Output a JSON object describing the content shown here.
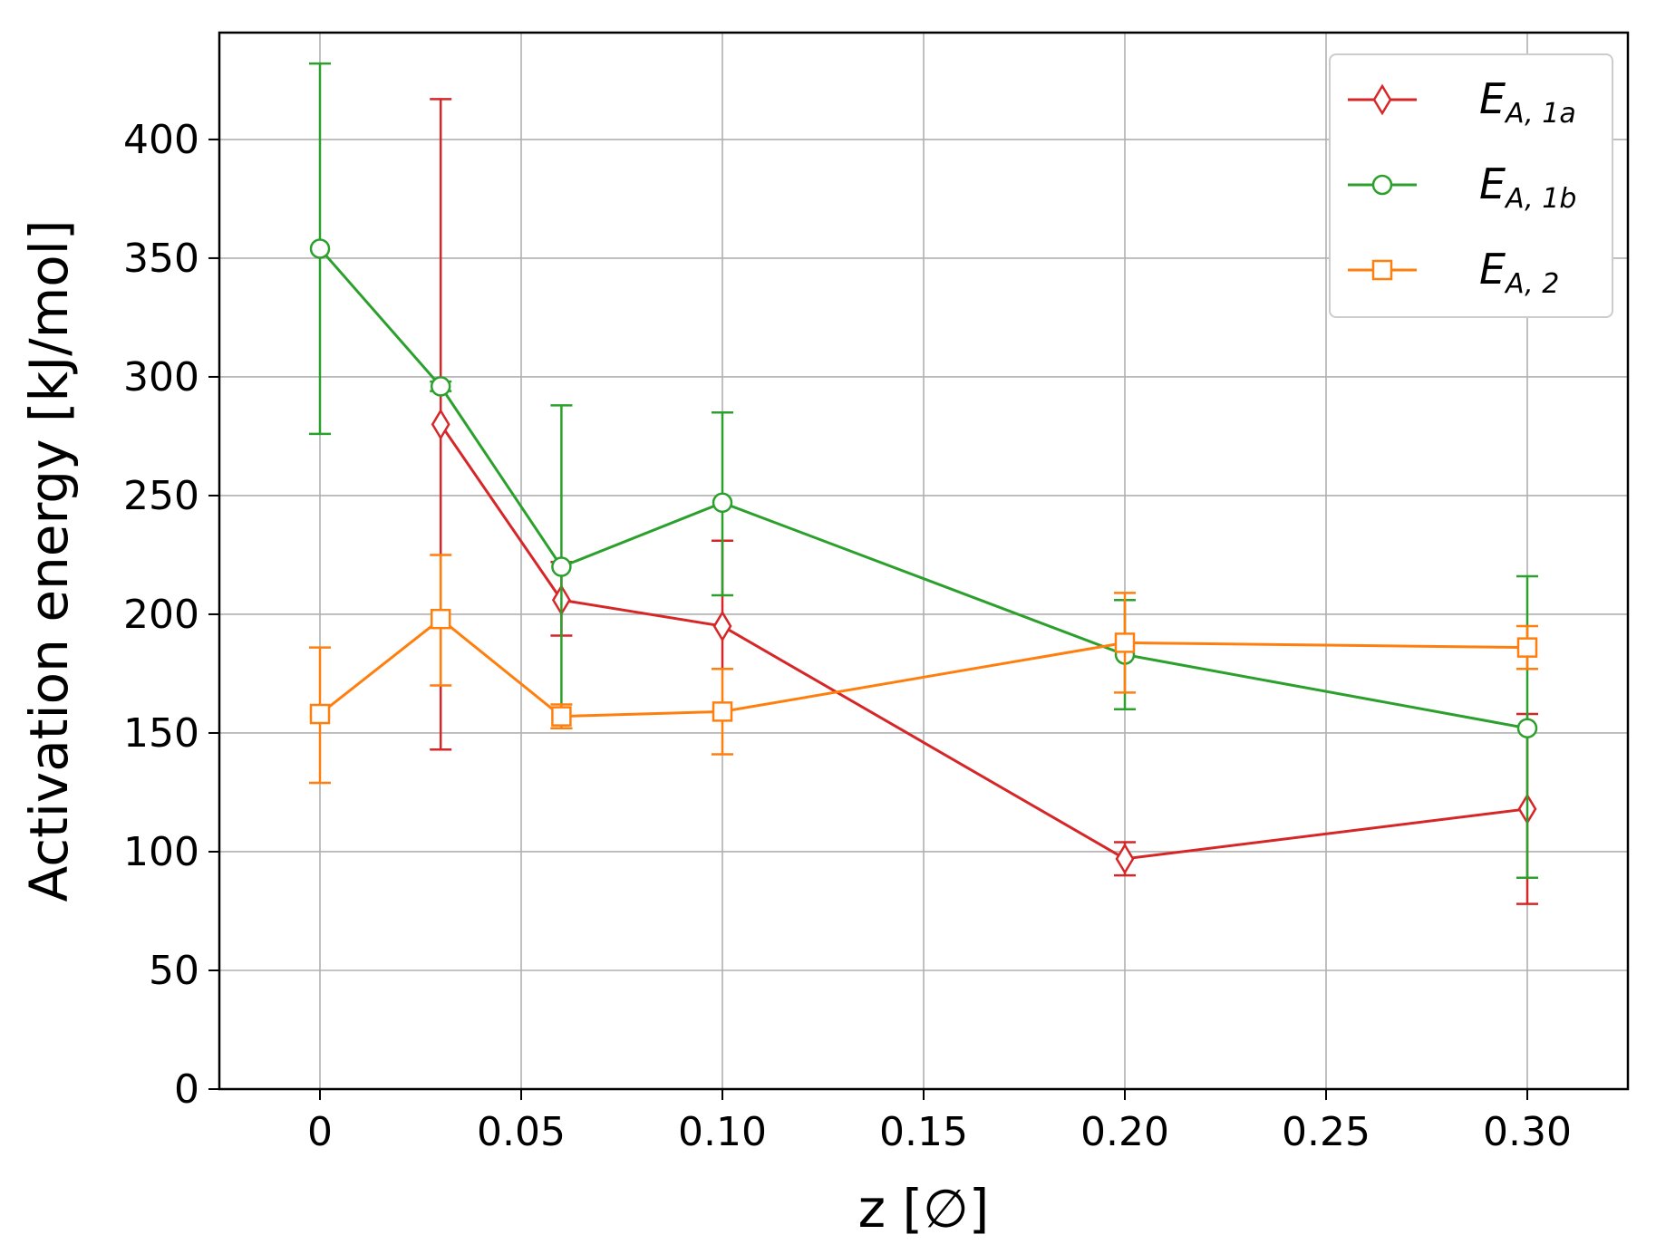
{
  "chart_data": {
    "type": "line",
    "xlabel": "z [∅]",
    "ylabel": "Activation energy [kJ/mol]",
    "xlim": [
      -0.025,
      0.325
    ],
    "ylim": [
      0,
      445
    ],
    "x_ticks": [
      0,
      0.05,
      0.1,
      0.15,
      0.2,
      0.25,
      0.3
    ],
    "x_tick_labels": [
      "0",
      "0.05",
      "0.10",
      "0.15",
      "0.20",
      "0.25",
      "0.30"
    ],
    "y_ticks": [
      0,
      50,
      100,
      150,
      200,
      250,
      300,
      350,
      400
    ],
    "y_tick_labels": [
      "0",
      "50",
      "100",
      "150",
      "200",
      "250",
      "300",
      "350",
      "400"
    ],
    "grid": true,
    "legend_position": "top-right",
    "series": [
      {
        "name": "E",
        "name_sub": "A, 1a",
        "color": "#d62728",
        "marker": "diamond",
        "x": [
          0.03,
          0.06,
          0.1,
          0.2,
          0.3
        ],
        "y": [
          280,
          206,
          195,
          97,
          118
        ],
        "err_low": [
          143,
          191,
          177,
          90,
          78
        ],
        "err_high": [
          417,
          222,
          231,
          104,
          158
        ]
      },
      {
        "name": "E",
        "name_sub": "A, 1b",
        "color": "#2ca02c",
        "marker": "circle",
        "x": [
          0,
          0.03,
          0.06,
          0.1,
          0.2,
          0.3
        ],
        "y": [
          354,
          296,
          220,
          247,
          183,
          152
        ],
        "err_low": [
          276,
          294,
          152,
          208,
          160,
          89
        ],
        "err_high": [
          432,
          298,
          288,
          285,
          206,
          216
        ]
      },
      {
        "name": "E",
        "name_sub": "A, 2",
        "color": "#ff7f0e",
        "marker": "square",
        "x": [
          0,
          0.03,
          0.06,
          0.1,
          0.2,
          0.3
        ],
        "y": [
          158,
          198,
          157,
          159,
          188,
          186
        ],
        "err_low": [
          129,
          170,
          152,
          141,
          167,
          177
        ],
        "err_high": [
          186,
          225,
          162,
          177,
          209,
          195
        ]
      }
    ]
  }
}
